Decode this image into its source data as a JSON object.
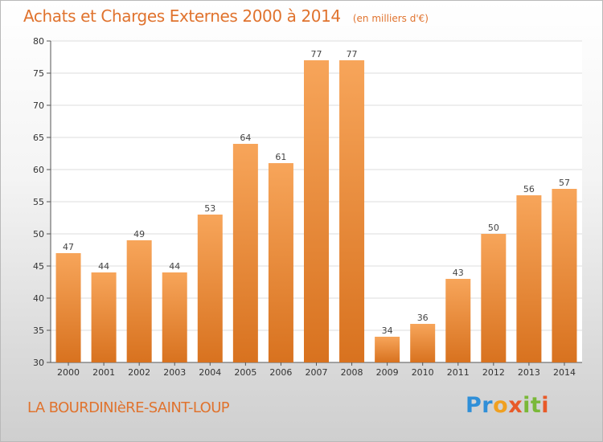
{
  "header": {
    "title": "Achats et Charges Externes 2000 à 2014",
    "unit": "(en milliers d'€)"
  },
  "footer": {
    "location": "LA BOURDINIèRE-SAINT-LOUP",
    "logo_text": "Proxiti"
  },
  "colors": {
    "accent": "#e0732e",
    "bar_top": "#f7a55a",
    "bar_bottom": "#d8721f",
    "grid": "#dddddd"
  },
  "chart_data": {
    "type": "bar",
    "title": "Achats et Charges Externes 2000 à 2014",
    "subtitle": "(en milliers d'€)",
    "xlabel": "",
    "ylabel": "",
    "categories": [
      "2000",
      "2001",
      "2002",
      "2003",
      "2004",
      "2005",
      "2006",
      "2007",
      "2008",
      "2009",
      "2010",
      "2011",
      "2012",
      "2013",
      "2014"
    ],
    "values": [
      47,
      44,
      49,
      44,
      53,
      64,
      61,
      77,
      77,
      34,
      36,
      43,
      50,
      56,
      57
    ],
    "ylim": [
      30,
      80
    ],
    "yticks": [
      30,
      35,
      40,
      45,
      50,
      55,
      60,
      65,
      70,
      75,
      80
    ],
    "grid": true,
    "legend": "none"
  }
}
